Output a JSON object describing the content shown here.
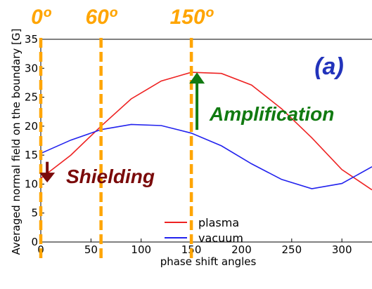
{
  "chart_data": {
    "type": "line",
    "title": "",
    "xlabel": "phase shift angles",
    "ylabel": "Averaged normal field on the boundary [G]",
    "xlim": [
      0,
      330
    ],
    "ylim": [
      0,
      35
    ],
    "xticks": [
      0,
      50,
      100,
      150,
      200,
      250,
      300
    ],
    "yticks": [
      0,
      5,
      10,
      15,
      20,
      25,
      30,
      35
    ],
    "grid": false,
    "legend_position": "bottom-center",
    "series": [
      {
        "name": "plasma",
        "color": "#ee2222",
        "x": [
          0,
          30,
          60,
          90,
          120,
          150,
          180,
          210,
          240,
          270,
          300,
          330
        ],
        "y": [
          11,
          15,
          20,
          24.7,
          27.8,
          29.3,
          29.1,
          27.1,
          23,
          18,
          12.5,
          9
        ]
      },
      {
        "name": "vacuum",
        "color": "#2222ee",
        "x": [
          0,
          30,
          60,
          90,
          120,
          150,
          180,
          210,
          240,
          270,
          300,
          330
        ],
        "y": [
          15.3,
          17.6,
          19.4,
          20.3,
          20.1,
          18.8,
          16.6,
          13.5,
          10.8,
          9.2,
          10.1,
          13
        ]
      }
    ],
    "marker_lines": {
      "color": "#ffa500",
      "positions": [
        0,
        60,
        150
      ],
      "labels": [
        "0º",
        "60º",
        "150º"
      ]
    },
    "annotations": {
      "panel_label": {
        "text": "(a)",
        "color": "#2233bb"
      },
      "amplification": {
        "text": "Amplification",
        "color": "#117a11",
        "arrow_x": 150,
        "arrow_y_from": 19,
        "arrow_y_to": 29.3
      },
      "shielding": {
        "text": "Shielding",
        "color": "#7a0a0a",
        "arrow_x": 5,
        "arrow_y_from": 15.3,
        "arrow_y_to": 11
      }
    }
  }
}
